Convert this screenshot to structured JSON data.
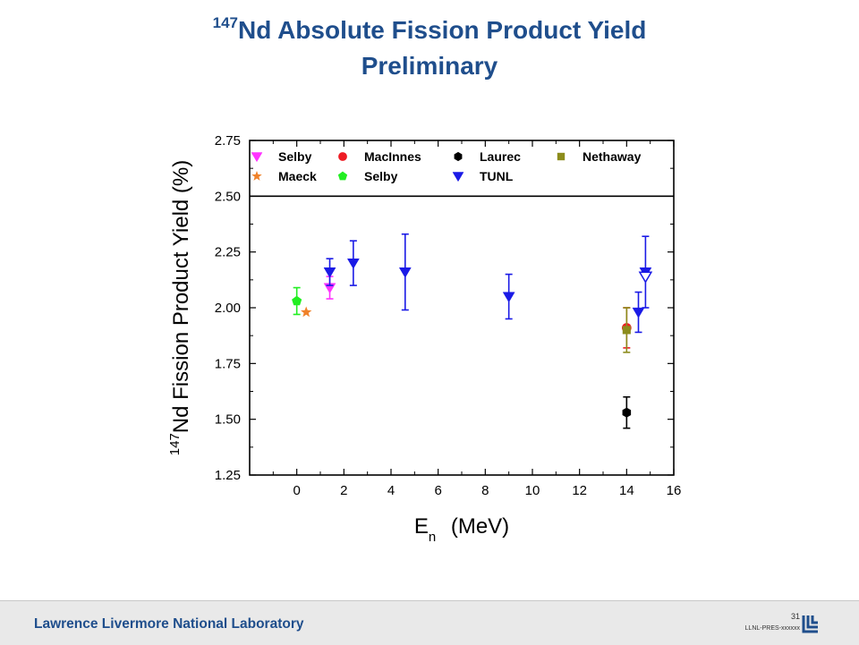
{
  "slide": {
    "title_sup": "147",
    "title_rest": "Nd Absolute Fission Product Yield",
    "subtitle": "Preliminary"
  },
  "footer": {
    "org": "Lawrence Livermore National Laboratory",
    "page": "31",
    "doc_id": "LLNL-PRES-xxxxxx"
  },
  "colors": {
    "title": "#1f4e8c",
    "selby_magenta": "#ff33ff",
    "macinnes": "#ee1c24",
    "laurec": "#000000",
    "nethaway": "#8c8c1c",
    "maeck": "#f0822a",
    "selby_green": "#22ee22",
    "tunl": "#1a1ae6"
  },
  "chart_data": {
    "type": "scatter",
    "xlabel_main": "E",
    "xlabel_sub": "n",
    "xlabel_unit": "(MeV)",
    "ylabel_sup": "147",
    "ylabel_main": "Nd Fission Product Yield (%)",
    "xlim": [
      -2,
      16
    ],
    "ylim": [
      1.25,
      2.75
    ],
    "xticks": [
      0,
      2,
      4,
      6,
      8,
      10,
      12,
      14,
      16
    ],
    "yticks": [
      1.25,
      1.5,
      1.75,
      2.0,
      2.25,
      2.5,
      2.75
    ],
    "xtick_labels": [
      "0",
      "2",
      "4",
      "6",
      "8",
      "10",
      "12",
      "14",
      "16"
    ],
    "ytick_labels": [
      "1.25",
      "1.50",
      "1.75",
      "2.00",
      "2.25",
      "2.50",
      "2.75"
    ],
    "hline": 2.5,
    "legend_position": "top, inside plot",
    "legend": [
      {
        "label": "Selby",
        "marker": "triangle-down",
        "color": "#ff33ff"
      },
      {
        "label": "MacInnes",
        "marker": "circle",
        "color": "#ee1c24"
      },
      {
        "label": "Laurec",
        "marker": "hexagon",
        "color": "#000000"
      },
      {
        "label": "Nethaway",
        "marker": "square",
        "color": "#8c8c1c"
      },
      {
        "label": "Maeck",
        "marker": "star",
        "color": "#f0822a"
      },
      {
        "label": "Selby",
        "marker": "pentagon",
        "color": "#22ee22"
      },
      {
        "label": "TUNL",
        "marker": "triangle-down",
        "color": "#1a1ae6"
      }
    ],
    "series": [
      {
        "name": "Selby",
        "marker": "triangle-down",
        "color": "#ff33ff",
        "points": [
          {
            "x": 1.4,
            "y": 2.09,
            "err": 0.05
          }
        ]
      },
      {
        "name": "MacInnes",
        "marker": "circle",
        "color": "#ee1c24",
        "points": [
          {
            "x": 14.0,
            "y": 1.91,
            "err": 0.09
          }
        ]
      },
      {
        "name": "Laurec",
        "marker": "hexagon",
        "color": "#000000",
        "points": [
          {
            "x": 14.0,
            "y": 1.53,
            "err": 0.07
          }
        ]
      },
      {
        "name": "Nethaway",
        "marker": "square",
        "color": "#8c8c1c",
        "points": [
          {
            "x": 14.0,
            "y": 1.9,
            "err": 0.1
          }
        ]
      },
      {
        "name": "Maeck",
        "marker": "star",
        "color": "#f0822a",
        "points": [
          {
            "x": 0.4,
            "y": 1.98,
            "err": 0
          }
        ]
      },
      {
        "name": "Selby",
        "marker": "pentagon",
        "color": "#22ee22",
        "points": [
          {
            "x": 0.0,
            "y": 2.03,
            "err": 0.06
          }
        ]
      },
      {
        "name": "TUNL",
        "marker": "triangle-down",
        "color": "#1a1ae6",
        "points": [
          {
            "x": 1.4,
            "y": 2.16,
            "err": 0.06
          },
          {
            "x": 2.4,
            "y": 2.2,
            "err": 0.1
          },
          {
            "x": 4.6,
            "y": 2.16,
            "err": 0.17
          },
          {
            "x": 9.0,
            "y": 2.05,
            "err": 0.1
          },
          {
            "x": 14.5,
            "y": 1.98,
            "err": 0.09
          },
          {
            "x": 14.8,
            "y": 2.16,
            "err": 0.16
          }
        ]
      },
      {
        "name": "",
        "marker": "triangle-down-open",
        "color": "#1a1ae6",
        "points": [
          {
            "x": 14.8,
            "y": 2.14,
            "err": 0
          }
        ]
      }
    ]
  }
}
